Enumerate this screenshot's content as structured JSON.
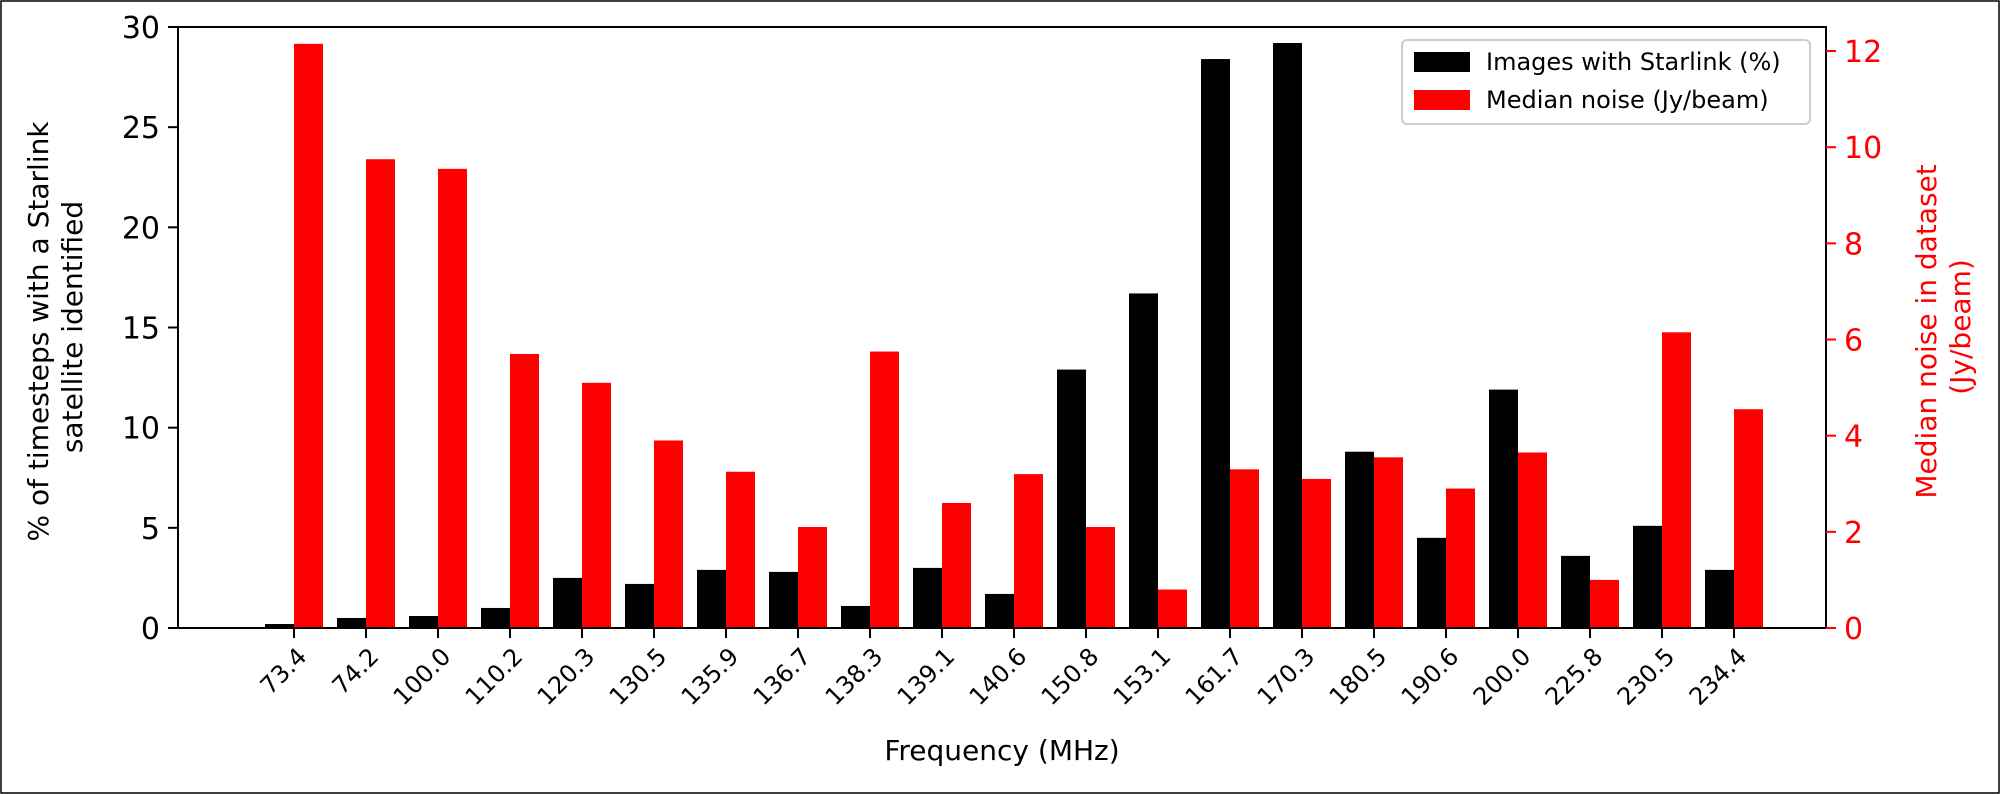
{
  "chart_data": {
    "type": "bar",
    "title": "",
    "xlabel": "Frequency (MHz)",
    "ylabel_left": "% of timesteps with a Starlink satellite identified",
    "ylabel_left_lines": [
      "% of timesteps with a Starlink",
      "satellite identified"
    ],
    "ylabel_right_lines": [
      "Median noise in dataset",
      "(Jy/beam)"
    ],
    "categories": [
      "73.4",
      "74.2",
      "100.0",
      "110.2",
      "120.3",
      "130.5",
      "135.9",
      "136.7",
      "138.3",
      "139.1",
      "140.6",
      "150.8",
      "153.1",
      "161.7",
      "170.3",
      "180.5",
      "190.6",
      "200.0",
      "225.8",
      "230.5",
      "234.4"
    ],
    "ylim_left": [
      0,
      30
    ],
    "ylim_right": [
      0,
      12.5
    ],
    "yticks_left": [
      0,
      5,
      10,
      15,
      20,
      25,
      30
    ],
    "yticks_right": [
      0,
      2,
      4,
      6,
      8,
      10,
      12
    ],
    "legend_placement": "top-right",
    "grid": false,
    "series": [
      {
        "name": "Images with Starlink (%)",
        "axis": "left",
        "color": "#000000",
        "values": [
          0.2,
          0.5,
          0.6,
          1.0,
          2.5,
          2.2,
          2.9,
          2.8,
          1.1,
          3.0,
          1.7,
          12.9,
          16.7,
          28.4,
          29.2,
          8.8,
          4.5,
          11.9,
          3.6,
          5.1,
          2.9
        ]
      },
      {
        "name": "Median noise (Jy/beam)",
        "axis": "right",
        "color": "#ff0000",
        "values": [
          12.15,
          9.75,
          9.55,
          5.7,
          5.1,
          3.9,
          3.25,
          2.1,
          5.75,
          2.6,
          3.2,
          2.1,
          0.8,
          3.3,
          3.1,
          3.55,
          2.9,
          3.65,
          1.0,
          6.15,
          4.55
        ]
      }
    ]
  }
}
